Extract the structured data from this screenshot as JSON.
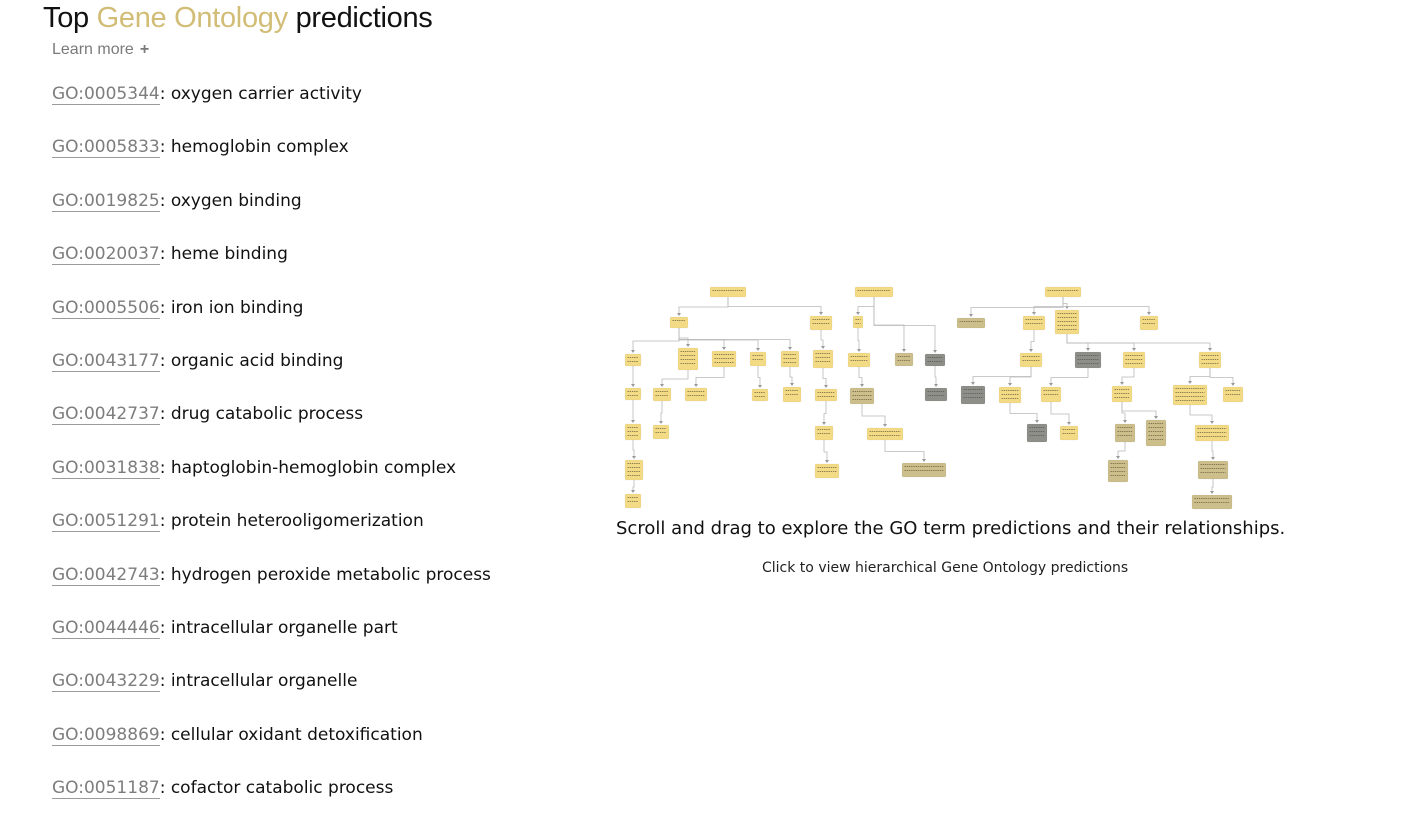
{
  "header": {
    "title_prefix": "Top",
    "title_accent": "Gene Ontology",
    "title_suffix": "predictions",
    "learn_more_label": "Learn more",
    "learn_more_icon": "+"
  },
  "colors": {
    "accent": "#d2bd76",
    "node_yellow": "#f3db86",
    "node_tan": "#cdbf8c",
    "node_grey": "#8f8f8a",
    "edge": "#b9b9b9"
  },
  "predictions": [
    {
      "id": "GO:0005344",
      "name": ": oxygen carrier activity"
    },
    {
      "id": "GO:0005833",
      "name": ": hemoglobin complex"
    },
    {
      "id": "GO:0019825",
      "name": ": oxygen binding"
    },
    {
      "id": "GO:0020037",
      "name": ": heme binding"
    },
    {
      "id": "GO:0005506",
      "name": ": iron ion binding"
    },
    {
      "id": "GO:0043177",
      "name": ": organic acid binding"
    },
    {
      "id": "GO:0042737",
      "name": ": drug catabolic process"
    },
    {
      "id": "GO:0031838",
      "name": ": haptoglobin-hemoglobin complex"
    },
    {
      "id": "GO:0051291",
      "name": ": protein heterooligomerization"
    },
    {
      "id": "GO:0042743",
      "name": ": hydrogen peroxide metabolic process"
    },
    {
      "id": "GO:0044446",
      "name": ": intracellular organelle part"
    },
    {
      "id": "GO:0043229",
      "name": ": intracellular organelle"
    },
    {
      "id": "GO:0098869",
      "name": ": cellular oxidant detoxification"
    },
    {
      "id": "GO:0051187",
      "name": ": cofactor catabolic process"
    }
  ],
  "graph": {
    "caption": "Scroll and drag to explore the GO term predictions and their relationships.",
    "link_label": "Click to view hierarchical Gene Ontology predictions",
    "root_nodes": [
      "molecular_function",
      "cellular_component",
      "biological_process"
    ]
  }
}
